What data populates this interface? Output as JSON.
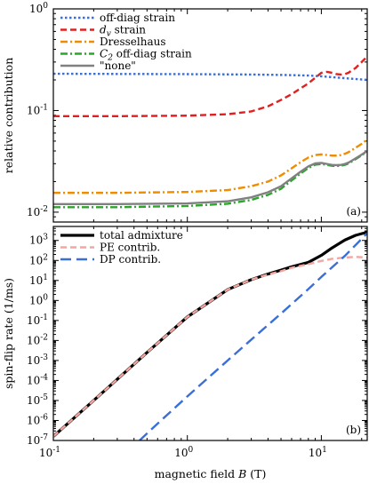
{
  "chart_data": [
    {
      "type": "line",
      "panel_label": "(a)",
      "ylabel": "relative contribution",
      "xscale": "log",
      "yscale": "log",
      "xlim": [
        0.1,
        22
      ],
      "ylim": [
        0.008,
        1
      ],
      "y_ticks": [
        {
          "value": 0.01,
          "base": "10",
          "exp": "-2"
        },
        {
          "value": 0.1,
          "base": "10",
          "exp": "-1"
        },
        {
          "value": 1,
          "base": "10",
          "exp": "0"
        }
      ],
      "legend_position": "top-left",
      "series": [
        {
          "name": "off-diag strain",
          "color": "#3a6fd8",
          "dash": "dotted",
          "x": [
            0.1,
            0.3,
            1,
            3,
            5,
            8,
            10,
            15,
            22
          ],
          "y": [
            0.23,
            0.229,
            0.228,
            0.226,
            0.224,
            0.221,
            0.217,
            0.208,
            0.2
          ]
        },
        {
          "name_parts": [
            "d",
            "v",
            " strain"
          ],
          "color": "#e02020",
          "dash": "dashed",
          "x": [
            0.1,
            0.3,
            1,
            2,
            3,
            4,
            5,
            6,
            7,
            8,
            9,
            10,
            11,
            12,
            13,
            14,
            15,
            16,
            18,
            20,
            22
          ],
          "y": [
            0.088,
            0.088,
            0.089,
            0.092,
            0.098,
            0.11,
            0.127,
            0.145,
            0.165,
            0.185,
            0.21,
            0.235,
            0.24,
            0.235,
            0.228,
            0.226,
            0.228,
            0.236,
            0.262,
            0.3,
            0.34
          ]
        },
        {
          "name": "Dresselhaus",
          "color": "#f08c00",
          "dash": "dashdot",
          "x": [
            0.1,
            0.3,
            1,
            2,
            3,
            4,
            5,
            6,
            7,
            8,
            9,
            10,
            11,
            12,
            13,
            14,
            15,
            16,
            18,
            20,
            22
          ],
          "y": [
            0.0155,
            0.0155,
            0.0158,
            0.0165,
            0.018,
            0.02,
            0.023,
            0.027,
            0.031,
            0.0345,
            0.0365,
            0.037,
            0.0365,
            0.036,
            0.036,
            0.0365,
            0.0375,
            0.039,
            0.043,
            0.047,
            0.052
          ]
        },
        {
          "name_parts": [
            "C",
            "2",
            " off-diag strain"
          ],
          "color": "#2ca52c",
          "dash": "dashdot",
          "x": [
            0.1,
            0.3,
            1,
            2,
            3,
            4,
            5,
            6,
            7,
            8,
            9,
            10,
            11,
            12,
            13,
            14,
            15,
            16,
            18,
            20,
            22
          ],
          "y": [
            0.0112,
            0.0112,
            0.0115,
            0.0121,
            0.0132,
            0.0148,
            0.017,
            0.0205,
            0.024,
            0.0272,
            0.0293,
            0.0298,
            0.0292,
            0.0286,
            0.0284,
            0.0286,
            0.0292,
            0.0302,
            0.0332,
            0.0363,
            0.0395
          ]
        },
        {
          "name": "\"none\"",
          "color": "#808080",
          "dash": "solid",
          "x": [
            0.1,
            0.3,
            1,
            2,
            3,
            4,
            5,
            6,
            7,
            8,
            9,
            10,
            11,
            12,
            13,
            14,
            15,
            16,
            18,
            20,
            22
          ],
          "y": [
            0.012,
            0.012,
            0.0122,
            0.0128,
            0.014,
            0.0157,
            0.018,
            0.0215,
            0.025,
            0.0282,
            0.0302,
            0.0305,
            0.0298,
            0.0292,
            0.029,
            0.0292,
            0.0298,
            0.0308,
            0.0338,
            0.0368,
            0.04
          ]
        }
      ]
    },
    {
      "type": "line",
      "panel_label": "(b)",
      "ylabel": "spin-flip rate (1/ms)",
      "xlabel_parts": [
        "magnetic field ",
        "B",
        " (T)"
      ],
      "xscale": "log",
      "yscale": "log",
      "xlim": [
        0.1,
        22
      ],
      "ylim": [
        1e-07,
        5000
      ],
      "x_ticks": [
        {
          "value": 0.1,
          "base": "10",
          "exp": "-1"
        },
        {
          "value": 1,
          "base": "10",
          "exp": "0"
        },
        {
          "value": 10,
          "base": "10",
          "exp": "1"
        }
      ],
      "y_ticks": [
        {
          "value": 1e-07,
          "base": "10",
          "exp": "-7"
        },
        {
          "value": 1e-06,
          "base": "10",
          "exp": "-6"
        },
        {
          "value": 1e-05,
          "base": "10",
          "exp": "-5"
        },
        {
          "value": 0.0001,
          "base": "10",
          "exp": "-4"
        },
        {
          "value": 0.001,
          "base": "10",
          "exp": "-3"
        },
        {
          "value": 0.01,
          "base": "10",
          "exp": "-2"
        },
        {
          "value": 0.1,
          "base": "10",
          "exp": "-1"
        },
        {
          "value": 1,
          "base": "10",
          "exp": "0"
        },
        {
          "value": 10,
          "base": "10",
          "exp": "1"
        },
        {
          "value": 100,
          "base": "10",
          "exp": "2"
        },
        {
          "value": 1000,
          "base": "10",
          "exp": "3"
        }
      ],
      "legend_position": "top-left",
      "series": [
        {
          "name": "total admixture",
          "color": "#000000",
          "dash": "solid",
          "x": [
            0.1,
            0.2,
            0.5,
            1,
            2,
            3,
            4,
            5,
            6,
            8,
            10,
            12,
            15,
            18,
            22
          ],
          "y": [
            1.6e-07,
            1e-05,
            0.0025,
            0.15,
            3.5,
            11,
            21,
            33,
            48,
            80,
            180,
            420,
            1050,
            1800,
            2600
          ]
        },
        {
          "name": "PE contrib.",
          "color": "#f4a6a0",
          "dash": "dashed",
          "x": [
            0.1,
            0.2,
            0.5,
            1,
            2,
            3,
            4,
            5,
            6,
            8,
            10,
            12,
            15,
            18,
            22
          ],
          "y": [
            1.6e-07,
            1e-05,
            0.0025,
            0.15,
            3.5,
            11,
            20,
            29,
            43,
            65,
            95,
            120,
            140,
            150,
            140
          ]
        },
        {
          "name": "DP contrib.",
          "color": "#3a6fd8",
          "dash": "longdash",
          "x": [
            0.44,
            0.6,
            1,
            2,
            3,
            5,
            8,
            10,
            15,
            22
          ],
          "y": [
            1e-07,
            7e-07,
            1.6e-05,
            0.001,
            0.011,
            0.22,
            3.7,
            15,
            170,
            2300
          ]
        }
      ]
    }
  ]
}
